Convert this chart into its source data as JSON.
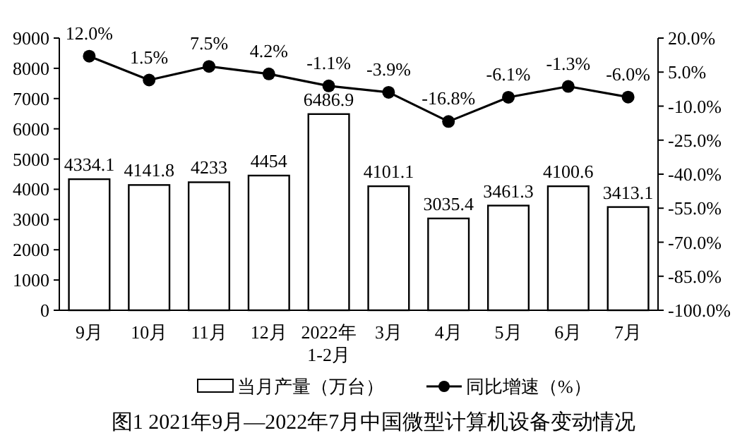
{
  "chart_data": {
    "type": "bar",
    "title": "图1  2021年9月—2022年7月中国微型计算机设备变动情况",
    "categories": [
      "9月",
      "10月",
      "11月",
      "12月",
      "2022年 1-2月",
      "3月",
      "4月",
      "5月",
      "6月",
      "7月"
    ],
    "series": [
      {
        "name": "当月产量（万台）",
        "color": "#ffffff",
        "values": [
          4334.1,
          4141.8,
          4233,
          4454,
          6486.9,
          4101.1,
          3035.4,
          3461.3,
          4100.6,
          3413.1
        ]
      },
      {
        "name": "同比增速（%）",
        "type": "line",
        "axis": "y2",
        "color": "#000000",
        "marker": "circle",
        "values": [
          12.0,
          1.5,
          7.5,
          4.2,
          -1.1,
          -3.9,
          -16.8,
          -6.1,
          -1.3,
          -6.0
        ],
        "value_labels": [
          "12.0%",
          "1.5%",
          "7.5%",
          "4.2%",
          "-1.1%",
          "-3.9%",
          "-16.8%",
          "-6.1%",
          "-1.3%",
          "-6.0%"
        ]
      }
    ],
    "data_labels": true,
    "ylim": [
      0,
      9000
    ],
    "yticks": [
      0,
      1000,
      2000,
      3000,
      4000,
      5000,
      6000,
      7000,
      8000,
      9000
    ],
    "y2lim": [
      -100,
      20
    ],
    "y2ticks": [
      {
        "value": -100,
        "label": "-100.0%"
      },
      {
        "value": -85,
        "label": "-85.0%"
      },
      {
        "value": -70,
        "label": "-70.0%"
      },
      {
        "value": -55,
        "label": "-55.0%"
      },
      {
        "value": -40,
        "label": "-40.0%"
      },
      {
        "value": -25,
        "label": "-25.0%"
      },
      {
        "value": -10,
        "label": "-10.0%"
      },
      {
        "value": 5,
        "label": "5.0%"
      },
      {
        "value": 20,
        "label": "20.0%"
      }
    ],
    "grid": false,
    "legend": "bottom"
  }
}
